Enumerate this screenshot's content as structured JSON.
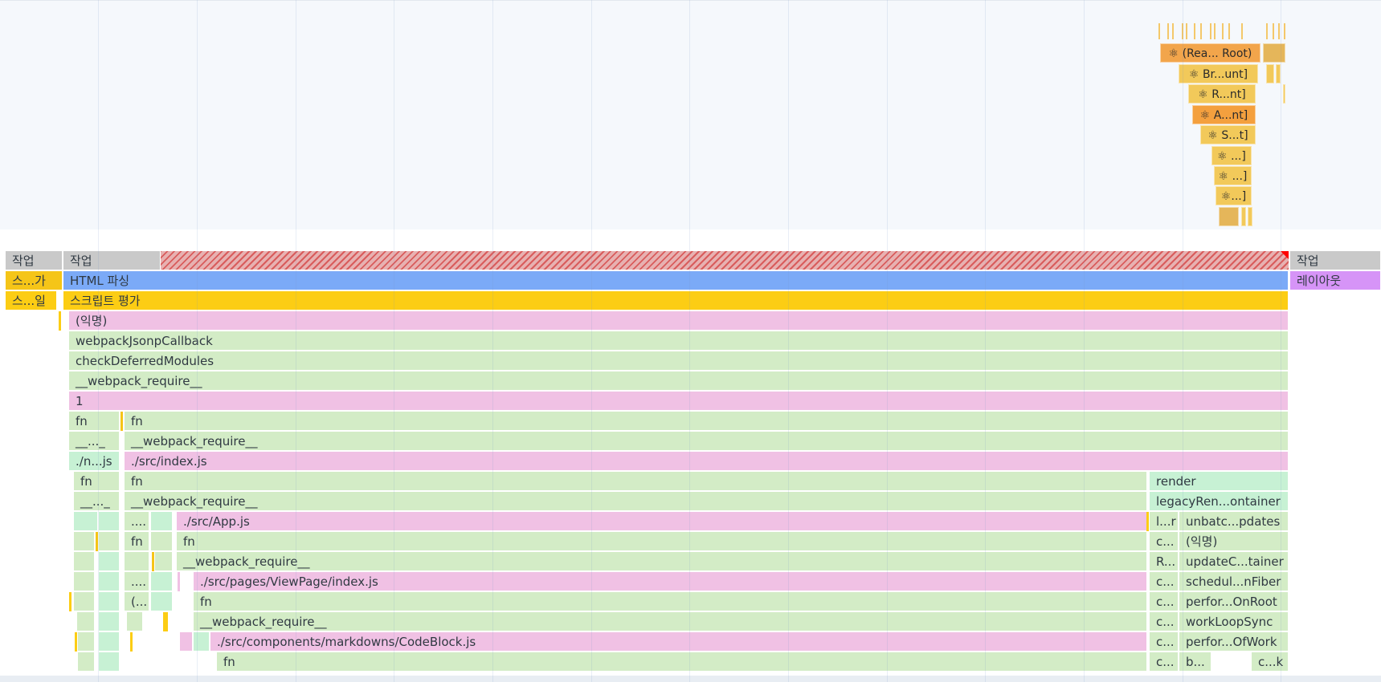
{
  "react_track": {
    "components": [
      {
        "label": "⚛ (Rea... Root)",
        "bind": "root"
      },
      {
        "label": "⚛ Br...unt]",
        "bind": "br"
      },
      {
        "label": "⚛ R...nt]",
        "bind": "r"
      },
      {
        "label": "⚛ A...nt]",
        "bind": "a"
      },
      {
        "label": "⚛ S...t]",
        "bind": "s"
      },
      {
        "label": "⚛ ...]",
        "bind": "e1"
      },
      {
        "label": "⚛ ...]",
        "bind": "e2"
      },
      {
        "label": "⚛...]",
        "bind": "e3"
      }
    ]
  },
  "flame": {
    "task_left_1": "작업",
    "task_main": "작업",
    "task_right": "작업",
    "left_parse": "스...가",
    "html_parse": "HTML 파싱",
    "layout": "레이아웃",
    "left_style": "스...일",
    "script_eval": "스크립트 평가",
    "anonymous": "(익명)",
    "webpack_jsonp": "webpackJsonpCallback",
    "check_deferred": "checkDeferredModules",
    "webpack_require": "__webpack_require__",
    "module_id": "1",
    "fn": "fn",
    "webpack_require_short": "__..._",
    "webpack_require_short2": "__..._",
    "node_modules_short": "./n...js",
    "index_js": "./src/index.js",
    "app_js": "./src/App.js",
    "viewpage_js": "./src/pages/ViewPage/index.js",
    "codeblock_js": "./src/components/markdowns/CodeBlock.js",
    "dots": "....",
    "paren_short": "(...",
    "right_col_a": [
      "l...r",
      "c...",
      "R...",
      "c...",
      "c...",
      "c...",
      "c...",
      "c..."
    ],
    "right_col_b": [
      "render",
      "legacyRen...ontainer",
      "unbatc...pdates",
      "(익명)",
      "updateC...tainer",
      "schedul...nFiber",
      "perfor...OnRoot",
      "workLoopSync",
      "perfor...OfWork",
      "b...",
      "c...k"
    ]
  }
}
